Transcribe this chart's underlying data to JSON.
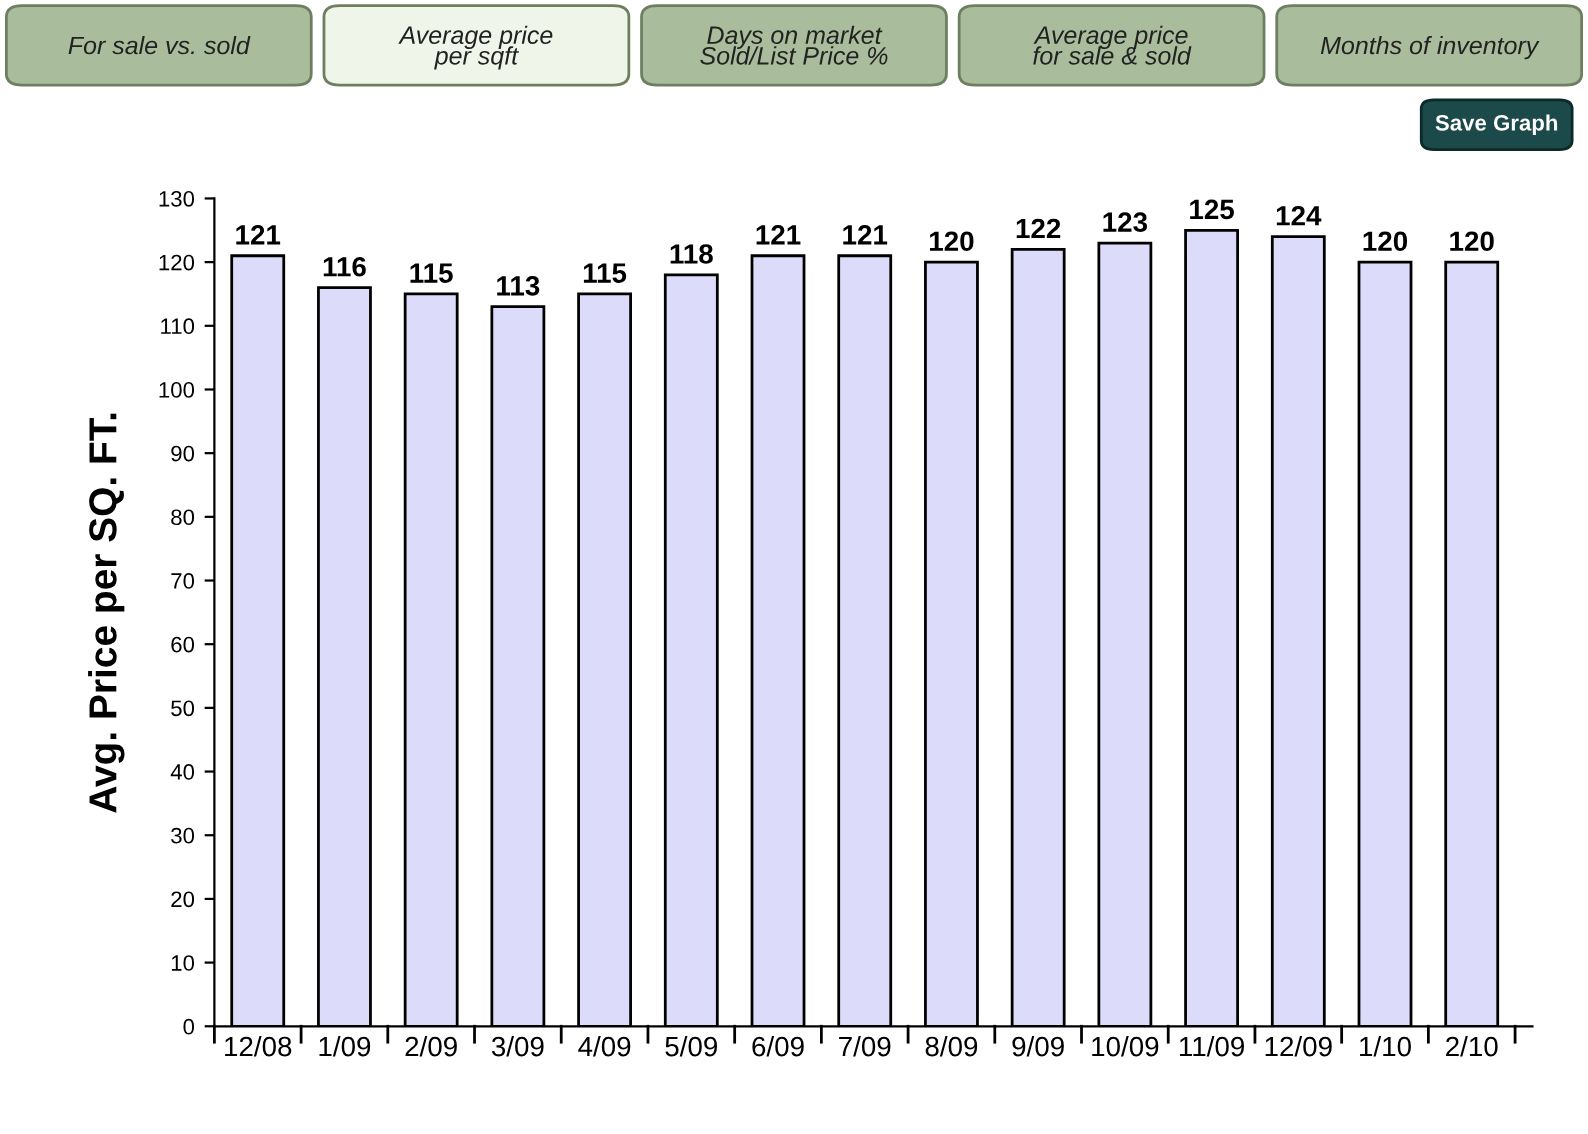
{
  "chart_data": {
    "type": "bar",
    "ylabel": "Avg. Price per SQ. FT.",
    "categories": [
      "12/08",
      "1/09",
      "2/09",
      "3/09",
      "4/09",
      "5/09",
      "6/09",
      "7/09",
      "8/09",
      "9/09",
      "10/09",
      "11/09",
      "12/09",
      "1/10",
      "2/10"
    ],
    "values": [
      121,
      116,
      115,
      113,
      115,
      118,
      121,
      121,
      120,
      122,
      123,
      125,
      124,
      120,
      120
    ],
    "color": "#dcdcfa",
    "ylim": [
      0,
      130
    ],
    "yticks": [
      0,
      10,
      20,
      30,
      40,
      50,
      60,
      70,
      80,
      90,
      100,
      110,
      120,
      130
    ],
    "data_labels": true,
    "grid": false,
    "legend": false,
    "annotations": [
      "For sale vs. sold",
      "Average price\nper sqft",
      "Days on market\nSold/List Price %",
      "Average price\nfor sale & sold",
      "Months of inventory",
      "Save Graph"
    ]
  }
}
